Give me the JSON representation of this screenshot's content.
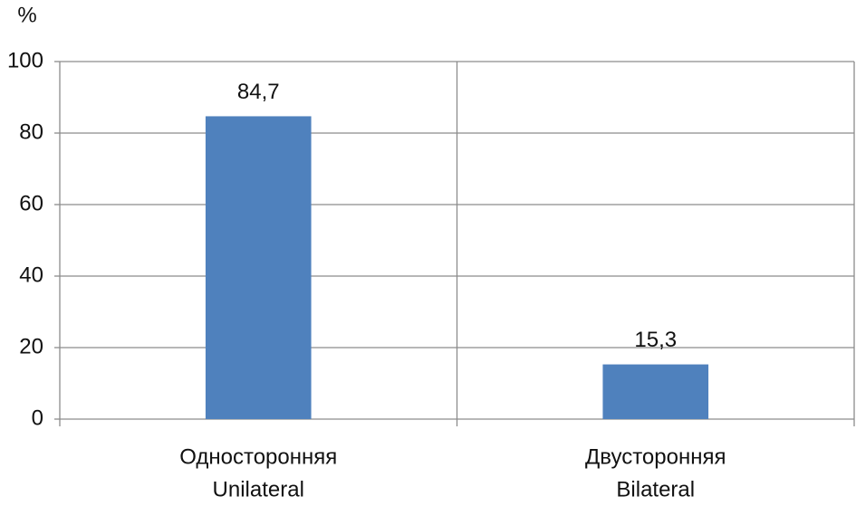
{
  "chart_data": {
    "type": "bar",
    "y_label": "%",
    "categories": [
      [
        "Односторонняя",
        "Unilateral"
      ],
      [
        "Двусторонняя",
        "Bilateral"
      ]
    ],
    "values": [
      84.7,
      15.3
    ],
    "value_labels": [
      "84,7",
      "15,3"
    ],
    "color": "#4f81bd",
    "ylim": [
      0,
      100
    ],
    "yticks": [
      0,
      20,
      40,
      60,
      80,
      100
    ],
    "grid": true
  }
}
